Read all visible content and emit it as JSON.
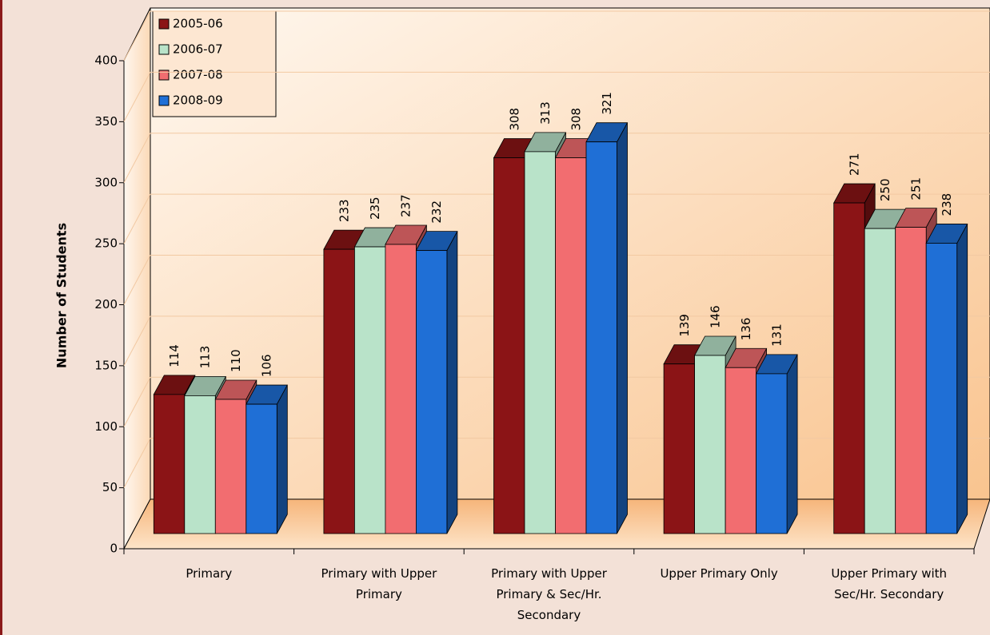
{
  "chart_data": {
    "type": "bar3d",
    "categories": [
      "Primary",
      "Primary with Upper Primary",
      "Primary with Upper Primary & Sec/Hr. Secondary",
      "Upper Primary Only",
      "Upper Primary with Sec/Hr. Secondary"
    ],
    "series": [
      {
        "name": "2005-06",
        "color": "#8b1416",
        "values": [
          114,
          233,
          308,
          139,
          271
        ]
      },
      {
        "name": "2006-07",
        "color": "#b9e3c9",
        "values": [
          113,
          235,
          313,
          146,
          250
        ]
      },
      {
        "name": "2007-08",
        "color": "#f26d70",
        "values": [
          110,
          237,
          308,
          136,
          251
        ]
      },
      {
        "name": "2008-09",
        "color": "#1f6fd6",
        "values": [
          106,
          232,
          321,
          131,
          238
        ]
      }
    ],
    "y_label": "Number of Students",
    "ylim": [
      0,
      400
    ],
    "yticks": [
      0,
      50,
      100,
      150,
      200,
      250,
      300,
      350,
      400
    ],
    "grid": true,
    "legend": "top-left"
  }
}
